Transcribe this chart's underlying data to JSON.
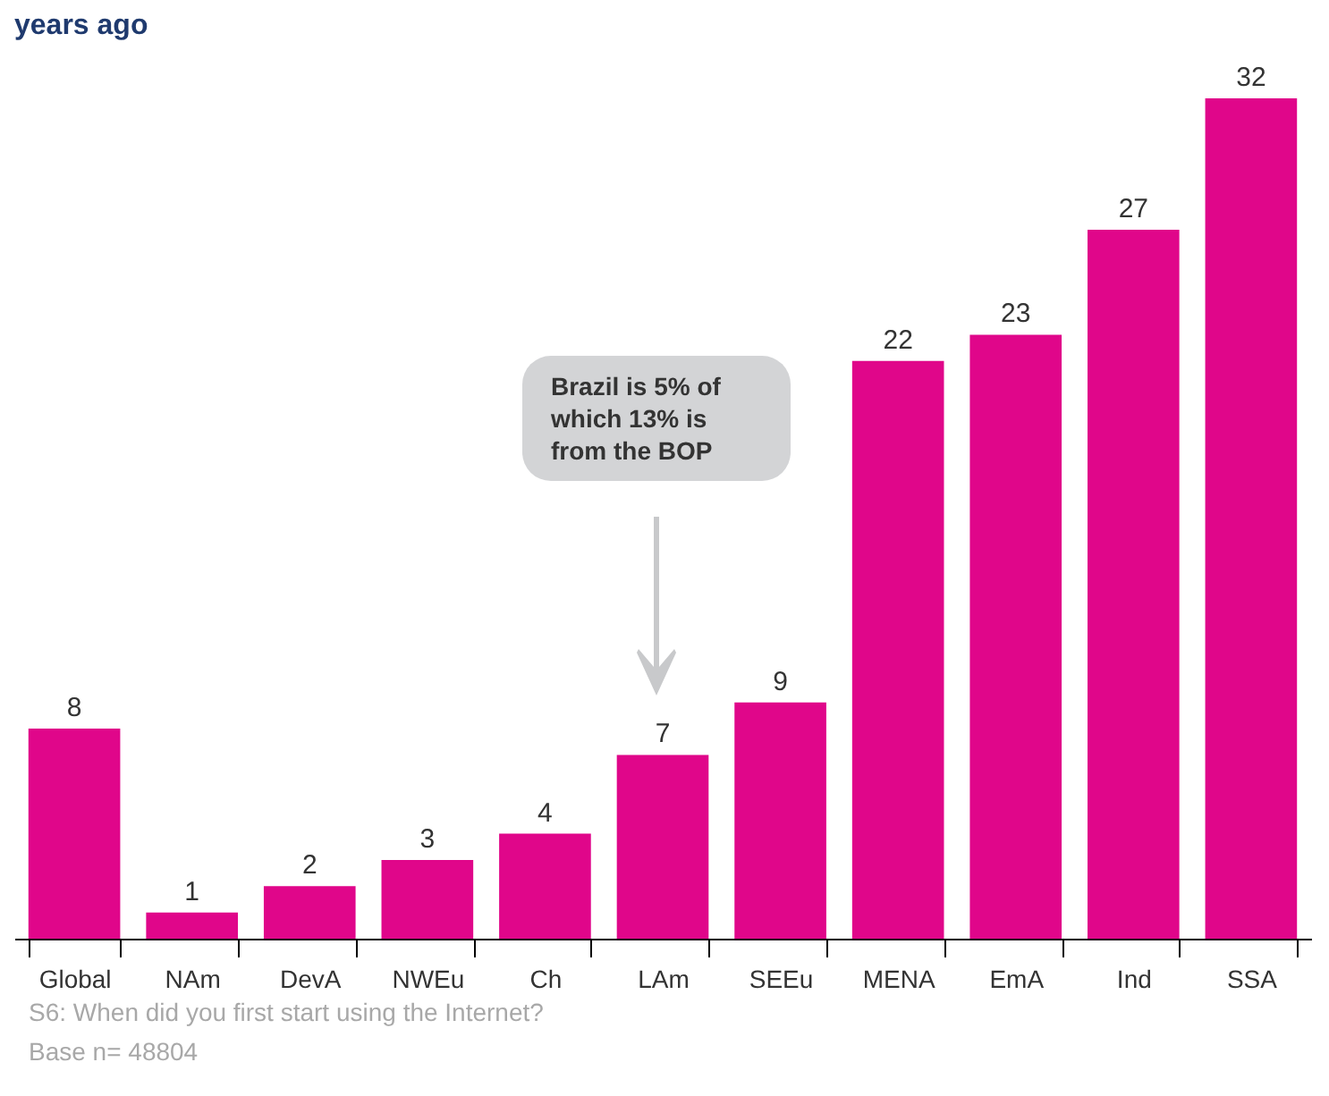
{
  "chart_data": {
    "type": "bar",
    "title": "years ago",
    "categories": [
      "Global",
      "NAm",
      "DevA",
      "NWEu",
      "Ch",
      "LAm",
      "SEEu",
      "MENA",
      "EmA",
      "Ind",
      "SSA"
    ],
    "values": [
      8,
      1,
      2,
      3,
      4,
      7,
      9,
      22,
      23,
      27,
      32
    ],
    "color": "#e0068a",
    "data_labels": true,
    "annotations": [
      "Brazil is 5% of which 13% is from the BOP",
      "S6: When did you first start using the Internet?",
      "Base n= 48804"
    ]
  }
}
